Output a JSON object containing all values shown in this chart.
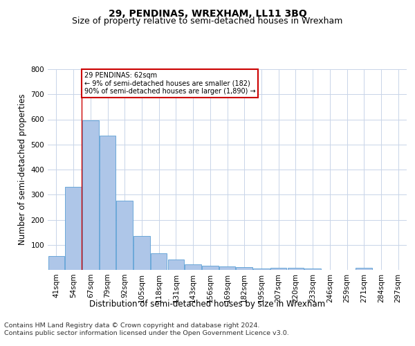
{
  "title": "29, PENDINAS, WREXHAM, LL11 3BQ",
  "subtitle": "Size of property relative to semi-detached houses in Wrexham",
  "xlabel": "Distribution of semi-detached houses by size in Wrexham",
  "ylabel": "Number of semi-detached properties",
  "footer_line1": "Contains HM Land Registry data © Crown copyright and database right 2024.",
  "footer_line2": "Contains public sector information licensed under the Open Government Licence v3.0.",
  "categories": [
    "41sqm",
    "54sqm",
    "67sqm",
    "79sqm",
    "92sqm",
    "105sqm",
    "118sqm",
    "131sqm",
    "143sqm",
    "156sqm",
    "169sqm",
    "182sqm",
    "195sqm",
    "207sqm",
    "220sqm",
    "233sqm",
    "246sqm",
    "259sqm",
    "271sqm",
    "284sqm",
    "297sqm"
  ],
  "values": [
    55,
    330,
    595,
    535,
    275,
    135,
    65,
    42,
    22,
    17,
    13,
    10,
    6,
    7,
    9,
    5,
    0,
    0,
    8,
    0,
    0
  ],
  "bar_color": "#aec6e8",
  "bar_edge_color": "#5a9fd4",
  "property_line_x": 1.475,
  "annotation_text_line1": "29 PENDINAS: 62sqm",
  "annotation_text_line2": "← 9% of semi-detached houses are smaller (182)",
  "annotation_text_line3": "90% of semi-detached houses are larger (1,890) →",
  "annotation_box_color": "#ffffff",
  "annotation_box_edge": "#cc0000",
  "property_line_color": "#cc0000",
  "ylim": [
    0,
    800
  ],
  "yticks": [
    0,
    100,
    200,
    300,
    400,
    500,
    600,
    700,
    800
  ],
  "background_color": "#ffffff",
  "grid_color": "#c8d4e8",
  "title_fontsize": 10,
  "subtitle_fontsize": 9,
  "axis_label_fontsize": 8.5,
  "tick_fontsize": 7.5,
  "footer_fontsize": 6.8
}
